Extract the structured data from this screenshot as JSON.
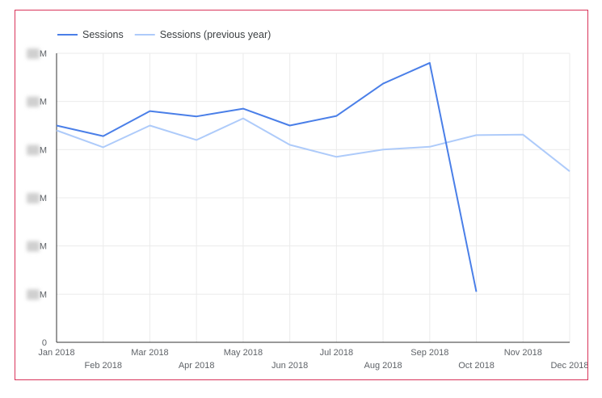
{
  "chart_data": {
    "type": "line",
    "title": "",
    "xlabel": "",
    "ylabel": "",
    "categories": [
      "Jan 2018",
      "Feb 2018",
      "Mar 2018",
      "Apr 2018",
      "May 2018",
      "Jun 2018",
      "Jul 2018",
      "Aug 2018",
      "Sep 2018",
      "Oct 2018",
      "Nov 2018",
      "Dec 2018"
    ],
    "y_tick_labels": [
      "0",
      "M",
      "M",
      "M",
      "M",
      "M",
      "M"
    ],
    "ylim": [
      0,
      6
    ],
    "grid": true,
    "legend_position": "top-left",
    "series": [
      {
        "name": "Sessions",
        "color": "#4a7fe8",
        "values": [
          4.5,
          4.28,
          4.8,
          4.69,
          4.85,
          4.5,
          4.7,
          5.37,
          5.8,
          1.05,
          null,
          null
        ]
      },
      {
        "name": "Sessions (previous year)",
        "color": "#aecbfa",
        "values": [
          4.4,
          4.05,
          4.5,
          4.2,
          4.65,
          4.1,
          3.85,
          4.0,
          4.06,
          4.3,
          4.31,
          3.55
        ]
      }
    ]
  }
}
